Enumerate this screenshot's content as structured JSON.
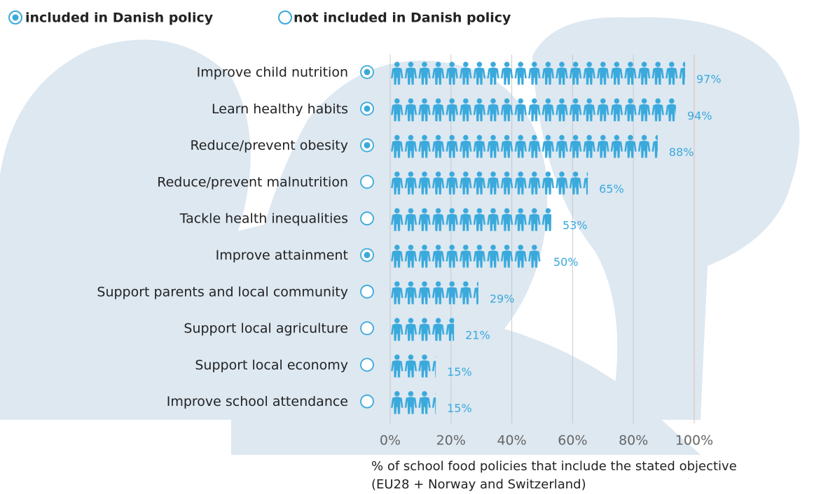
{
  "chart_data": {
    "type": "pictograph",
    "legend": [
      "included in Danish policy",
      "not included in Danish policy"
    ],
    "categories": [
      "Improve child nutrition",
      "Learn healthy habits",
      "Reduce/prevent obesity",
      "Reduce/prevent malnutrition",
      "Tackle health inequalities",
      "Improve attainment",
      "Support parents and local community",
      "Support local agriculture",
      "Support local economy",
      "Improve school attendance"
    ],
    "values": [
      97,
      94,
      88,
      65,
      53,
      50,
      29,
      21,
      15,
      15
    ],
    "value_labels": [
      "97%",
      "94%",
      "88%",
      "65%",
      "53%",
      "50%",
      "29%",
      "21%",
      "15%",
      "15%"
    ],
    "included_in_danish_policy": [
      true,
      true,
      true,
      false,
      false,
      true,
      false,
      false,
      false,
      false
    ],
    "color": "#3aa9dc",
    "xlim": [
      0,
      100
    ],
    "xticks": [
      {
        "value": 0,
        "label": "0%"
      },
      {
        "value": 20,
        "label": "20%"
      },
      {
        "value": 40,
        "label": "40%"
      },
      {
        "value": 60,
        "label": "60%"
      },
      {
        "value": 80,
        "label": "80%"
      },
      {
        "value": 100,
        "label": "100%"
      }
    ],
    "grid": true,
    "xlabel": [
      "% of school food policies that include the stated objective",
      "(EU28 + Norway and Switzerland)"
    ]
  }
}
